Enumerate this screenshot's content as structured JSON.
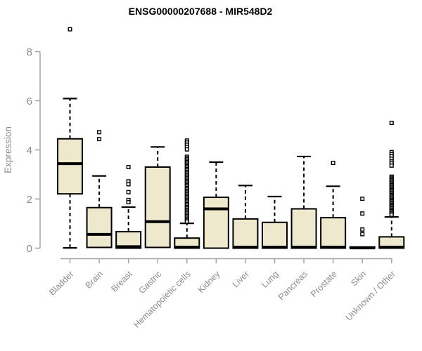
{
  "chart_data": {
    "type": "boxplot",
    "title": "ENSG00000207688 - MIR548D2",
    "ylabel": "Expression",
    "xlabel": "",
    "ylim": [
      0,
      8
    ],
    "yticks": [
      0,
      2,
      4,
      6,
      8
    ],
    "grid": false,
    "legend": "none",
    "categories": [
      "Bladder",
      "Brain",
      "Breast",
      "Gastric",
      "Hematopoietic cells",
      "Kidney",
      "Liver",
      "Lung",
      "Pancreas",
      "Prostate",
      "Skin",
      "Unknown / Other"
    ],
    "series": [
      {
        "category": "Bladder",
        "min": 0.01,
        "q1": 2.21,
        "median": 3.44,
        "q3": 4.45,
        "max": 6.09,
        "outliers": [
          8.91
        ]
      },
      {
        "category": "Brain",
        "min": 0.03,
        "q1": 0.03,
        "median": 0.56,
        "q3": 1.65,
        "max": 2.94,
        "outliers": [
          4.72,
          4.44
        ]
      },
      {
        "category": "Breast",
        "min": 0,
        "q1": 0,
        "median": 0.06,
        "q3": 0.67,
        "max": 1.67,
        "outliers": [
          3.3,
          2.72,
          2.6,
          2.28,
          1.96,
          1.87
        ]
      },
      {
        "category": "Gastric",
        "min": 0.03,
        "q1": 0.03,
        "median": 1.08,
        "q3": 3.3,
        "max": 4.12,
        "outliers": []
      },
      {
        "category": "Hematopoietic cells",
        "min": 0,
        "q1": 0,
        "median": 0.04,
        "q3": 0.41,
        "max": 1.01,
        "outliers": [
          4.38,
          4.3,
          4.21,
          4.12,
          4.02,
          3.72,
          3.66,
          3.61,
          3.55,
          3.5,
          3.44,
          3.39,
          3.33,
          3.28,
          3.22,
          3.17,
          3.11,
          3.06,
          3.0,
          2.95,
          2.89,
          2.84,
          2.78,
          2.73,
          2.67,
          2.62,
          2.56,
          2.51,
          2.45,
          2.4,
          2.34,
          2.29,
          2.23,
          2.18,
          2.12,
          2.07,
          2.01,
          1.96,
          1.9,
          1.85,
          1.79,
          1.74,
          1.68,
          1.63,
          1.57,
          1.52,
          1.46,
          1.41,
          1.35,
          1.3,
          1.24,
          1.19,
          1.13,
          1.08
        ]
      },
      {
        "category": "Kidney",
        "min": 0,
        "q1": 0,
        "median": 1.6,
        "q3": 2.07,
        "max": 3.5,
        "outliers": []
      },
      {
        "category": "Liver",
        "min": 0,
        "q1": 0,
        "median": 0.04,
        "q3": 1.19,
        "max": 2.55,
        "outliers": []
      },
      {
        "category": "Lung",
        "min": 0,
        "q1": 0,
        "median": 0.04,
        "q3": 1.05,
        "max": 2.1,
        "outliers": []
      },
      {
        "category": "Pancreas",
        "min": 0,
        "q1": 0,
        "median": 0.04,
        "q3": 1.6,
        "max": 3.73,
        "outliers": []
      },
      {
        "category": "Prostate",
        "min": 0,
        "q1": 0,
        "median": 0.04,
        "q3": 1.24,
        "max": 2.52,
        "outliers": [
          3.47
        ]
      },
      {
        "category": "Skin",
        "min": 0,
        "q1": 0,
        "median": 0.01,
        "q3": 0.05,
        "max": 0.05,
        "outliers": [
          2.01,
          1.41,
          0.76,
          0.57
        ]
      },
      {
        "category": "Unknown / Other",
        "min": 0,
        "q1": 0,
        "median": 0.04,
        "q3": 0.46,
        "max": 1.27,
        "outliers": [
          5.1,
          3.91,
          3.83,
          3.74,
          3.64,
          3.53,
          3.45,
          3.36,
          2.91,
          2.86,
          2.81,
          2.76,
          2.71,
          2.66,
          2.61,
          2.56,
          2.51,
          2.46,
          2.41,
          2.36,
          2.31,
          2.26,
          2.21,
          2.16,
          2.11,
          2.06,
          2.01,
          1.96,
          1.91,
          1.86,
          1.81,
          1.76,
          1.71,
          1.66,
          1.61,
          1.56,
          1.51,
          1.46,
          1.41,
          1.36
        ]
      }
    ],
    "colors": {
      "box_fill": "#EEE8CD",
      "box_stroke": "#000000",
      "median": "#000000",
      "whisker": "#000000",
      "outlier_stroke": "#000000",
      "outlier_fill": "#FFFFFF",
      "axis_line": "#A3A3A3",
      "axis_text": "#8C8C8C",
      "title": "#000000",
      "background": "#FFFFFF"
    }
  }
}
